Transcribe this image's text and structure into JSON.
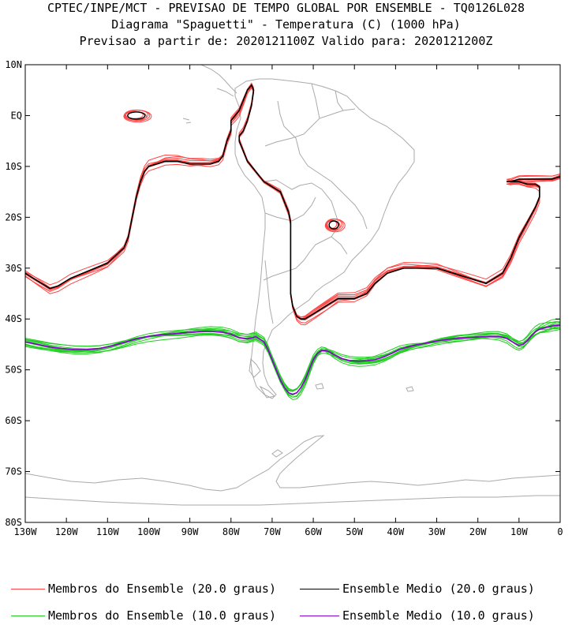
{
  "chart_data": {
    "type": "line",
    "title": "CPTEC/INPE/MCT - PREVISAO DE TEMPO GLOBAL POR ENSEMBLE - TQ0126L028",
    "subtitle": "Diagrama \"Spaguetti\" - Temperatura (C) (1000 hPa)",
    "subtitle2": "Previsao a partir de: 2020121100Z  Valido para: 2020121200Z",
    "xlabel": "",
    "ylabel": "",
    "xlim": [
      -130,
      0
    ],
    "ylim": [
      -80,
      10
    ],
    "x_ticks": [
      {
        "value": -130,
        "label": "130W"
      },
      {
        "value": -120,
        "label": "120W"
      },
      {
        "value": -110,
        "label": "110W"
      },
      {
        "value": -100,
        "label": "100W"
      },
      {
        "value": -90,
        "label": "90W"
      },
      {
        "value": -80,
        "label": "80W"
      },
      {
        "value": -70,
        "label": "70W"
      },
      {
        "value": -60,
        "label": "60W"
      },
      {
        "value": -50,
        "label": "50W"
      },
      {
        "value": -40,
        "label": "40W"
      },
      {
        "value": -30,
        "label": "30W"
      },
      {
        "value": -20,
        "label": "20W"
      },
      {
        "value": -10,
        "label": "10W"
      },
      {
        "value": 0,
        "label": "0"
      }
    ],
    "y_ticks": [
      {
        "value": 10,
        "label": "10N"
      },
      {
        "value": 0,
        "label": "EQ"
      },
      {
        "value": -10,
        "label": "10S"
      },
      {
        "value": -20,
        "label": "20S"
      },
      {
        "value": -30,
        "label": "30S"
      },
      {
        "value": -40,
        "label": "40S"
      },
      {
        "value": -50,
        "label": "50S"
      },
      {
        "value": -60,
        "label": "60S"
      },
      {
        "value": -70,
        "label": "70S"
      },
      {
        "value": -80,
        "label": "80S"
      }
    ],
    "series": [
      {
        "name": "Ensemble Medio (20.0 graus)",
        "color": "#000000",
        "member_color": "#ff4444",
        "x": [
          -130,
          -128,
          -126,
          -124,
          -122,
          -119,
          -116,
          -113,
          -110,
          -108,
          -106,
          -105,
          -104,
          -103,
          -102,
          -101,
          -100,
          -98,
          -96,
          -93,
          -90,
          -87,
          -85,
          -83,
          -82,
          -81,
          -80,
          -80,
          -79,
          -78,
          -77,
          -76,
          -75,
          -74.5,
          -75,
          -76,
          -77,
          -78,
          -78,
          -77,
          -76,
          -74,
          -72,
          -70,
          -68,
          -67,
          -66,
          -65.5,
          -65.5,
          -65.5,
          -65.5,
          -65.5,
          -65,
          -64,
          -63,
          -62,
          -60,
          -57,
          -54,
          -50,
          -47,
          -45,
          -42,
          -38,
          -34,
          -30,
          -26,
          -22,
          -18,
          -14,
          -12,
          -10,
          -8,
          -6,
          -5,
          -5,
          -6,
          -8,
          -10,
          -12,
          -13,
          -12,
          -10,
          -8,
          -5,
          -2,
          0
        ],
        "y": [
          -31,
          -32,
          -33,
          -34,
          -33.5,
          -32,
          -31,
          -30,
          -29,
          -27.5,
          -26,
          -24,
          -20,
          -16,
          -13,
          -11,
          -10,
          -9.5,
          -9,
          -9,
          -9.5,
          -9.5,
          -9.5,
          -9,
          -8,
          -5,
          -3,
          -1,
          0,
          1,
          3,
          5,
          6,
          5,
          2,
          -1,
          -3,
          -4,
          -5,
          -7,
          -9,
          -11,
          -13,
          -14,
          -15,
          -17,
          -19,
          -21,
          -25,
          -28,
          -31,
          -35,
          -37.5,
          -39.5,
          -40,
          -40,
          -39,
          -37.5,
          -36,
          -36,
          -35,
          -33,
          -31,
          -30,
          -30,
          -30,
          -31,
          -32,
          -33,
          -31,
          -28,
          -24,
          -21,
          -18,
          -16,
          -14,
          -13.5,
          -13.5,
          -13,
          -13,
          -13,
          -13,
          -12.5,
          -12.5,
          -12.5,
          -12.5,
          -12
        ]
      },
      {
        "name": "Ensemble Medio (10.0 graus)",
        "color": "#8800cc",
        "member_color": "#22cc22",
        "x": [
          -130,
          -127,
          -124,
          -121,
          -118,
          -115,
          -112,
          -109,
          -106,
          -103,
          -100,
          -97,
          -94,
          -91,
          -88,
          -85,
          -82,
          -80,
          -78,
          -76,
          -74,
          -72,
          -71,
          -70,
          -69,
          -68,
          -67,
          -66,
          -65,
          -64,
          -63,
          -62,
          -61,
          -60,
          -59,
          -58,
          -57,
          -56,
          -55,
          -53,
          -51,
          -49,
          -47,
          -45,
          -43,
          -41,
          -39,
          -37,
          -35,
          -33,
          -31,
          -29,
          -27,
          -25,
          -23,
          -21,
          -19,
          -17,
          -15,
          -13,
          -12,
          -11,
          -10,
          -9,
          -8,
          -7,
          -6,
          -5,
          -4,
          -3,
          -2,
          -1,
          0
        ],
        "y": [
          -44.5,
          -45,
          -45.5,
          -45.8,
          -46,
          -46,
          -45.8,
          -45.3,
          -44.6,
          -43.9,
          -43.4,
          -43.1,
          -42.9,
          -42.7,
          -42.5,
          -42.4,
          -42.6,
          -43,
          -43.7,
          -43.9,
          -43.5,
          -44.5,
          -46,
          -48,
          -50,
          -52,
          -53.5,
          -54.5,
          -54.8,
          -54.5,
          -53.5,
          -52,
          -50,
          -48,
          -46.8,
          -46.2,
          -46.2,
          -46.5,
          -47,
          -47.8,
          -48.2,
          -48.3,
          -48.2,
          -48,
          -47.5,
          -46.8,
          -46,
          -45.5,
          -45.1,
          -44.8,
          -44.5,
          -44.2,
          -44,
          -43.8,
          -43.7,
          -43.6,
          -43.5,
          -43.4,
          -43.4,
          -43.8,
          -44.3,
          -44.8,
          -45.2,
          -45,
          -44.3,
          -43.3,
          -42.5,
          -42,
          -41.8,
          -41.6,
          -41.4,
          -41.3,
          -41.2
        ]
      }
    ],
    "legend": [
      {
        "label": "Membros do Ensemble (20.0 graus)",
        "color": "#ff4444"
      },
      {
        "label": "Ensemble Medio (20.0 graus)",
        "color": "#000000"
      },
      {
        "label": "Membros do Ensemble (10.0 graus)",
        "color": "#22cc22"
      },
      {
        "label": "Ensemble Medio (10.0 graus)",
        "color": "#8800cc"
      }
    ],
    "legend_position": "bottom"
  }
}
